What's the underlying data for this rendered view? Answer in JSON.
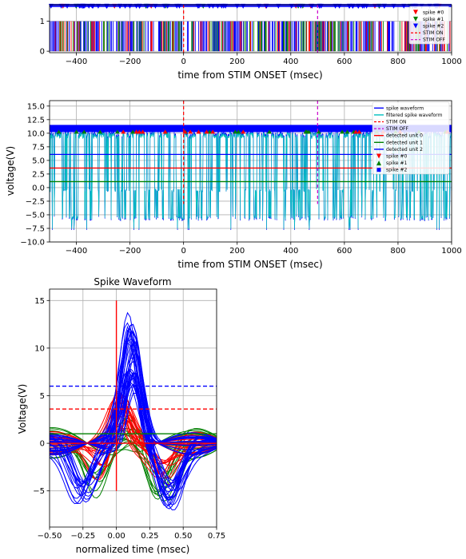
{
  "colors": {
    "unit0": "#ff0000",
    "unit1": "#008000",
    "unit2": "#0000ff",
    "filtered": "#00bfbf",
    "stim_on": "#ff0000",
    "stim_off": "#cc00cc"
  },
  "chart_data": [
    {
      "type": "raster",
      "xlabel": "time from STIM ONSET (msec)",
      "ylabel": "",
      "xlim": [
        -500,
        1000
      ],
      "ylim": [
        -0.05,
        1.55
      ],
      "xticks": [
        -400,
        -200,
        0,
        200,
        400,
        600,
        800,
        1000
      ],
      "yticks": [
        0,
        1
      ],
      "stim_on": 0,
      "stim_off": 500,
      "grid": true,
      "legend": "top-right",
      "legend_entries": [
        {
          "label": "spike #0",
          "kind": "tri-down",
          "color": "#ff0000"
        },
        {
          "label": "spike #1",
          "kind": "tri-down",
          "color": "#008000"
        },
        {
          "label": "spike #2",
          "kind": "tri-down",
          "color": "#0000ff"
        },
        {
          "label": "STIM ON",
          "kind": "dash",
          "color": "#ff0000"
        },
        {
          "label": "STIM OFF",
          "kind": "dash",
          "color": "#cc00cc"
        }
      ]
    },
    {
      "type": "line",
      "xlabel": "time from STIM ONSET (msec)",
      "ylabel": "voltage(V)",
      "xlim": [
        -500,
        1000
      ],
      "ylim": [
        -10,
        16
      ],
      "xticks": [
        -400,
        -200,
        0,
        200,
        400,
        600,
        800,
        1000
      ],
      "yticks": [
        -10.0,
        -7.5,
        -5.0,
        -2.5,
        0.0,
        2.5,
        5.0,
        7.5,
        10.0,
        12.5,
        15.0
      ],
      "stim_on": 0,
      "stim_off": 500,
      "detected_levels": {
        "unit0": 3.6,
        "unit1": 1.1,
        "unit2": 6.1
      },
      "grid": true,
      "legend": "top-right",
      "legend_entries": [
        {
          "label": "spike waveform",
          "kind": "line",
          "color": "#0000ff"
        },
        {
          "label": "filtered spike waveform",
          "kind": "line",
          "color": "#00bfbf"
        },
        {
          "label": "STIM ON",
          "kind": "dash",
          "color": "#ff0000"
        },
        {
          "label": "STIM OFF",
          "kind": "dash",
          "color": "#cc00cc"
        },
        {
          "label": "detected unit 0",
          "kind": "line",
          "color": "#ff0000"
        },
        {
          "label": "detected unit 1",
          "kind": "line",
          "color": "#008000"
        },
        {
          "label": "detected unit 2",
          "kind": "line",
          "color": "#0000ff"
        },
        {
          "label": "spike #0",
          "kind": "tri-down",
          "color": "#ff0000"
        },
        {
          "label": "spike #1",
          "kind": "tri-up",
          "color": "#008000"
        },
        {
          "label": "spike #2",
          "kind": "square",
          "color": "#0000ff"
        }
      ]
    },
    {
      "type": "line",
      "title": "Spike Waveform",
      "xlabel": "normalized time (msec)",
      "ylabel": "Voltage(V)",
      "xlim": [
        -0.5,
        0.75
      ],
      "ylim": [
        -8.8,
        16.2
      ],
      "xticks": [
        -0.5,
        -0.25,
        0.0,
        0.25,
        0.5,
        0.75
      ],
      "yticks": [
        -5,
        0,
        5,
        10,
        15
      ],
      "thresholds": {
        "unit0_dash": 3.6,
        "unit2_dash": 6.0,
        "unit0_solid": 0,
        "unit1_solid": 1.0
      },
      "grid": true
    }
  ],
  "ticklabels": {
    "p1x": [
      "−400",
      "−200",
      "0",
      "200",
      "400",
      "600",
      "800",
      "1000"
    ],
    "p1y": [
      "0",
      "1"
    ],
    "p2x": [
      "−400",
      "−200",
      "0",
      "200",
      "400",
      "600",
      "800",
      "1000"
    ],
    "p2y": [
      "−10.0",
      "−7.5",
      "−5.0",
      "−2.5",
      "0.0",
      "2.5",
      "5.0",
      "7.5",
      "10.0",
      "12.5",
      "15.0"
    ],
    "p3x": [
      "−0.50",
      "−0.25",
      "0.00",
      "0.25",
      "0.50",
      "0.75"
    ],
    "p3y": [
      "−5",
      "0",
      "5",
      "10",
      "15"
    ]
  }
}
